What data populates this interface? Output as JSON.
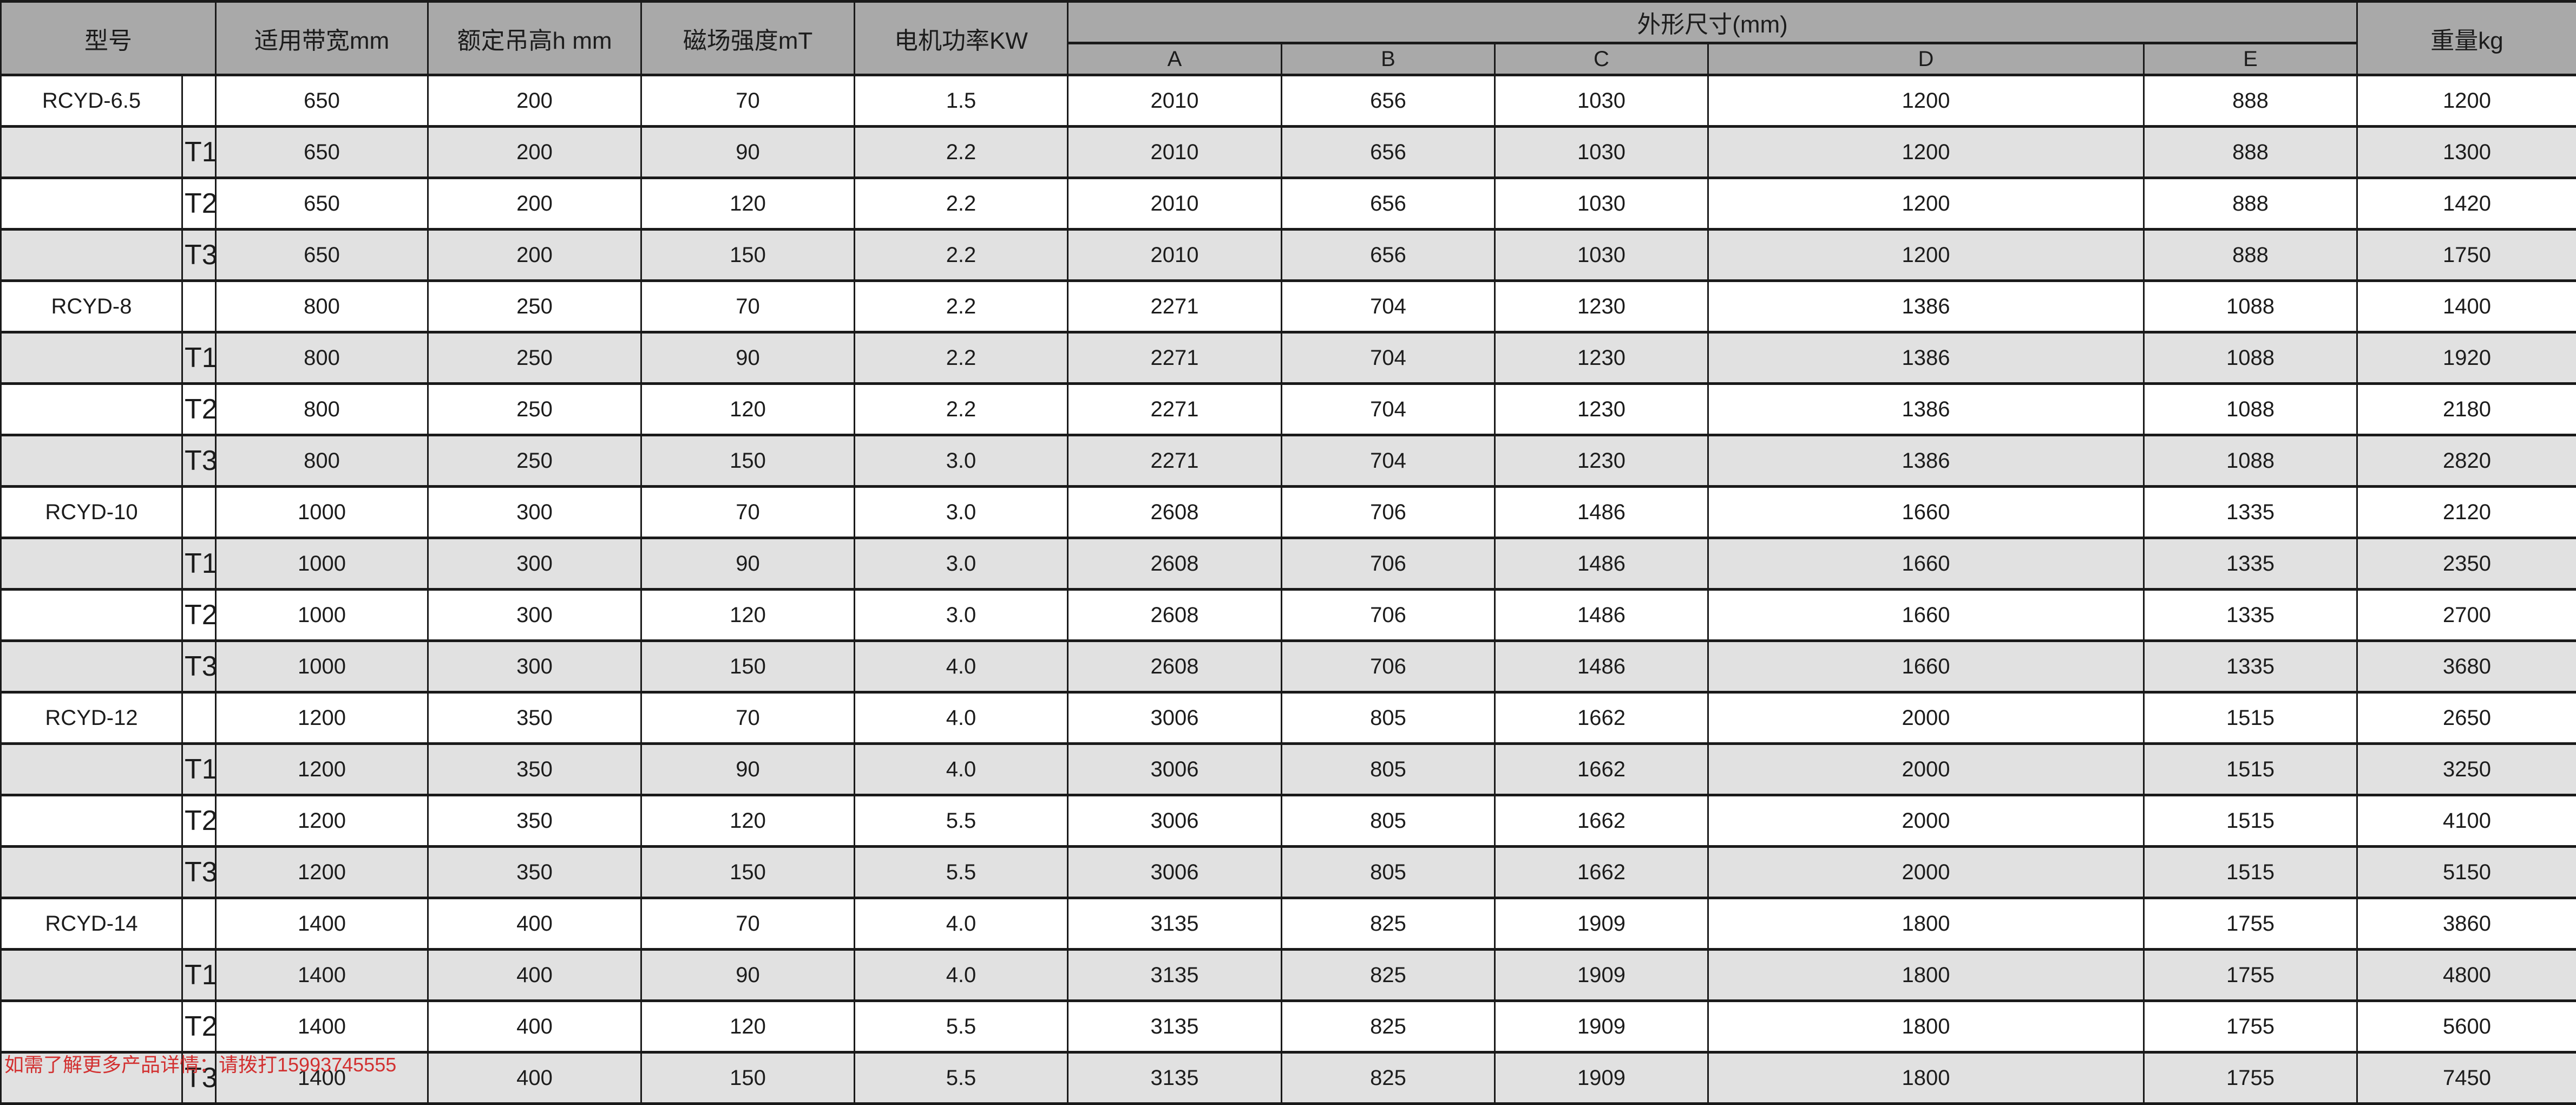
{
  "colors": {
    "border": "#1a1a1a",
    "header_bg": "#a9a9a9",
    "stripe_bg": "#e1e1e1",
    "row_bg": "#ffffff",
    "text": "#1c1c1c",
    "note": "#d23030"
  },
  "table": {
    "headers": {
      "model": "型号",
      "bandwidth": "适用带宽mm",
      "lift": "额定吊高h mm",
      "mag": "磁场强度mT",
      "kw": "电机功率KW",
      "dims": "外形尺寸(mm)",
      "dim_cols": [
        "A",
        "B",
        "C",
        "D",
        "E"
      ],
      "weight": "重量kg"
    },
    "rows": [
      {
        "model": "RCYD-6.5",
        "t": "",
        "bandwidth": "650",
        "lift": "200",
        "mag": "70",
        "kw": "1.5",
        "A": "2010",
        "B": "656",
        "C": "1030",
        "D": "1200",
        "E": "888",
        "weight": "1200"
      },
      {
        "model": "",
        "t": "T1",
        "bandwidth": "650",
        "lift": "200",
        "mag": "90",
        "kw": "2.2",
        "A": "2010",
        "B": "656",
        "C": "1030",
        "D": "1200",
        "E": "888",
        "weight": "1300"
      },
      {
        "model": "",
        "t": "T2",
        "bandwidth": "650",
        "lift": "200",
        "mag": "120",
        "kw": "2.2",
        "A": "2010",
        "B": "656",
        "C": "1030",
        "D": "1200",
        "E": "888",
        "weight": "1420"
      },
      {
        "model": "",
        "t": "T3",
        "bandwidth": "650",
        "lift": "200",
        "mag": "150",
        "kw": "2.2",
        "A": "2010",
        "B": "656",
        "C": "1030",
        "D": "1200",
        "E": "888",
        "weight": "1750"
      },
      {
        "model": "RCYD-8",
        "t": "",
        "bandwidth": "800",
        "lift": "250",
        "mag": "70",
        "kw": "2.2",
        "A": "2271",
        "B": "704",
        "C": "1230",
        "D": "1386",
        "E": "1088",
        "weight": "1400"
      },
      {
        "model": "",
        "t": "T1",
        "bandwidth": "800",
        "lift": "250",
        "mag": "90",
        "kw": "2.2",
        "A": "2271",
        "B": "704",
        "C": "1230",
        "D": "1386",
        "E": "1088",
        "weight": "1920"
      },
      {
        "model": "",
        "t": "T2",
        "bandwidth": "800",
        "lift": "250",
        "mag": "120",
        "kw": "2.2",
        "A": "2271",
        "B": "704",
        "C": "1230",
        "D": "1386",
        "E": "1088",
        "weight": "2180"
      },
      {
        "model": "",
        "t": "T3",
        "bandwidth": "800",
        "lift": "250",
        "mag": "150",
        "kw": "3.0",
        "A": "2271",
        "B": "704",
        "C": "1230",
        "D": "1386",
        "E": "1088",
        "weight": "2820"
      },
      {
        "model": "RCYD-10",
        "t": "",
        "bandwidth": "1000",
        "lift": "300",
        "mag": "70",
        "kw": "3.0",
        "A": "2608",
        "B": "706",
        "C": "1486",
        "D": "1660",
        "E": "1335",
        "weight": "2120"
      },
      {
        "model": "",
        "t": "T1",
        "bandwidth": "1000",
        "lift": "300",
        "mag": "90",
        "kw": "3.0",
        "A": "2608",
        "B": "706",
        "C": "1486",
        "D": "1660",
        "E": "1335",
        "weight": "2350"
      },
      {
        "model": "",
        "t": "T2",
        "bandwidth": "1000",
        "lift": "300",
        "mag": "120",
        "kw": "3.0",
        "A": "2608",
        "B": "706",
        "C": "1486",
        "D": "1660",
        "E": "1335",
        "weight": "2700"
      },
      {
        "model": "",
        "t": "T3",
        "bandwidth": "1000",
        "lift": "300",
        "mag": "150",
        "kw": "4.0",
        "A": "2608",
        "B": "706",
        "C": "1486",
        "D": "1660",
        "E": "1335",
        "weight": "3680"
      },
      {
        "model": "RCYD-12",
        "t": "",
        "bandwidth": "1200",
        "lift": "350",
        "mag": "70",
        "kw": "4.0",
        "A": "3006",
        "B": "805",
        "C": "1662",
        "D": "2000",
        "E": "1515",
        "weight": "2650"
      },
      {
        "model": "",
        "t": "T1",
        "bandwidth": "1200",
        "lift": "350",
        "mag": "90",
        "kw": "4.0",
        "A": "3006",
        "B": "805",
        "C": "1662",
        "D": "2000",
        "E": "1515",
        "weight": "3250"
      },
      {
        "model": "",
        "t": "T2",
        "bandwidth": "1200",
        "lift": "350",
        "mag": "120",
        "kw": "5.5",
        "A": "3006",
        "B": "805",
        "C": "1662",
        "D": "2000",
        "E": "1515",
        "weight": "4100"
      },
      {
        "model": "",
        "t": "T3",
        "bandwidth": "1200",
        "lift": "350",
        "mag": "150",
        "kw": "5.5",
        "A": "3006",
        "B": "805",
        "C": "1662",
        "D": "2000",
        "E": "1515",
        "weight": "5150"
      },
      {
        "model": "RCYD-14",
        "t": "",
        "bandwidth": "1400",
        "lift": "400",
        "mag": "70",
        "kw": "4.0",
        "A": "3135",
        "B": "825",
        "C": "1909",
        "D": "1800",
        "E": "1755",
        "weight": "3860"
      },
      {
        "model": "",
        "t": "T1",
        "bandwidth": "1400",
        "lift": "400",
        "mag": "90",
        "kw": "4.0",
        "A": "3135",
        "B": "825",
        "C": "1909",
        "D": "1800",
        "E": "1755",
        "weight": "4800"
      },
      {
        "model": "",
        "t": "T2",
        "bandwidth": "1400",
        "lift": "400",
        "mag": "120",
        "kw": "5.5",
        "A": "3135",
        "B": "825",
        "C": "1909",
        "D": "1800",
        "E": "1755",
        "weight": "5600"
      },
      {
        "model": "",
        "t": "T3",
        "bandwidth": "1400",
        "lift": "400",
        "mag": "150",
        "kw": "5.5",
        "A": "3135",
        "B": "825",
        "C": "1909",
        "D": "1800",
        "E": "1755",
        "weight": "7450"
      }
    ]
  },
  "footer": {
    "note": "如需了解更多产品详情：请拨打15993745555"
  }
}
